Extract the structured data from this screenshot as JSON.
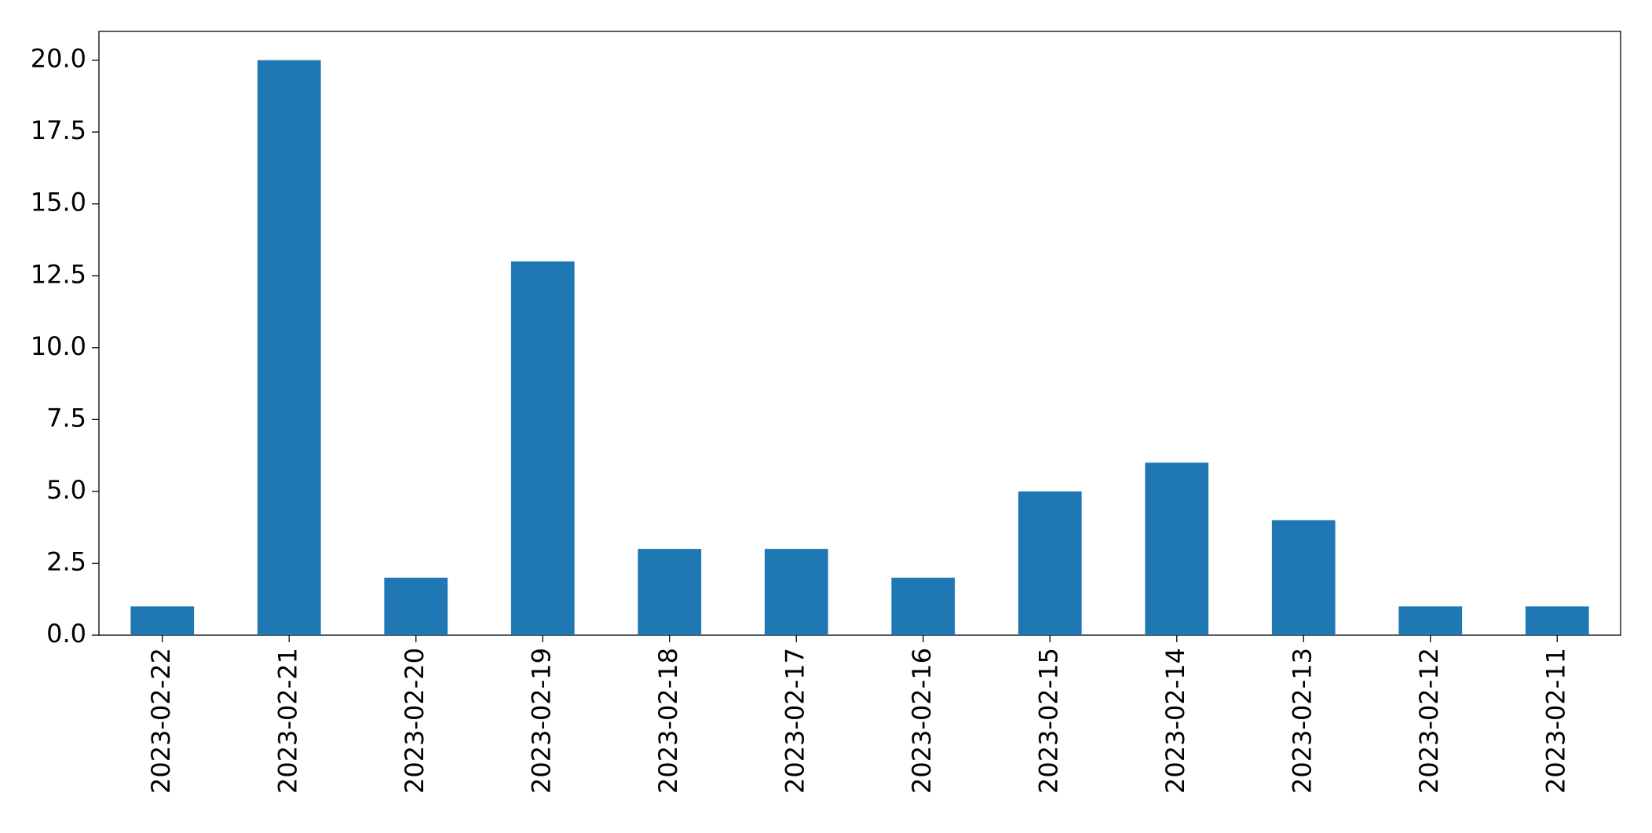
{
  "chart_data": {
    "type": "bar",
    "categories": [
      "2023-02-22",
      "2023-02-21",
      "2023-02-20",
      "2023-02-19",
      "2023-02-18",
      "2023-02-17",
      "2023-02-16",
      "2023-02-15",
      "2023-02-14",
      "2023-02-13",
      "2023-02-12",
      "2023-02-11"
    ],
    "values": [
      1,
      20,
      2,
      13,
      3,
      3,
      2,
      5,
      6,
      4,
      1,
      1
    ],
    "color": "#1f77b4",
    "ylim": [
      0,
      21
    ],
    "yticks": [
      {
        "value": 0,
        "label": "0.0"
      },
      {
        "value": 2.5,
        "label": "2.5"
      },
      {
        "value": 5,
        "label": "5.0"
      },
      {
        "value": 7.5,
        "label": "7.5"
      },
      {
        "value": 10,
        "label": "10.0"
      },
      {
        "value": 12.5,
        "label": "12.5"
      },
      {
        "value": 15,
        "label": "15.0"
      },
      {
        "value": 17.5,
        "label": "17.5"
      },
      {
        "value": 20,
        "label": "20.0"
      }
    ],
    "grid": false
  }
}
